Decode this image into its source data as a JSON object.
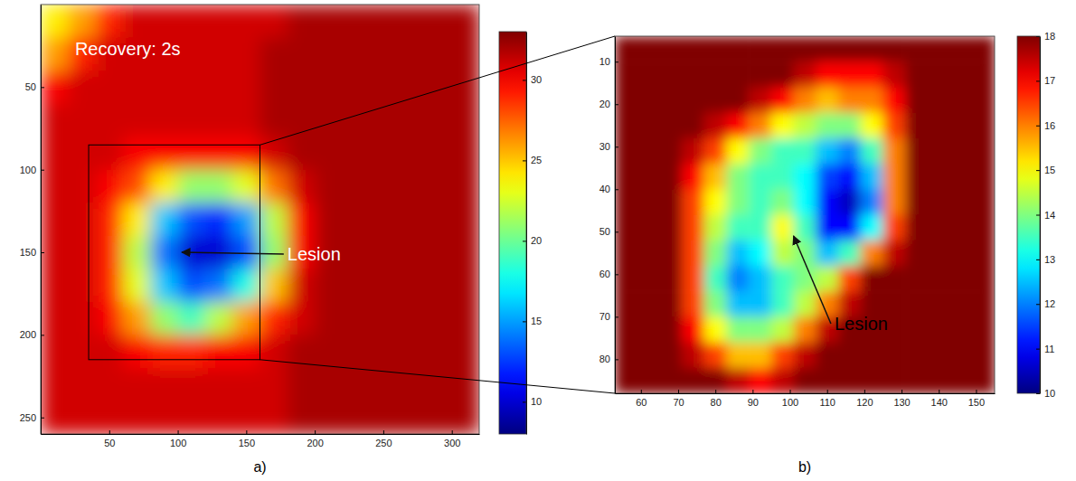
{
  "chart_data": [
    {
      "type": "heatmap",
      "title": "a)",
      "color": "jet",
      "xlim": [
        0,
        320
      ],
      "xticks": [
        50,
        100,
        150,
        200,
        250,
        300
      ],
      "ylim": [
        0,
        260
      ],
      "yticks": [
        50,
        100,
        150,
        200,
        250
      ],
      "x_edges": [
        0,
        20,
        40,
        60,
        80,
        100,
        120,
        140,
        160,
        180,
        200,
        220,
        240,
        260,
        280,
        300,
        320
      ],
      "y_edges": [
        0,
        20,
        40,
        60,
        80,
        100,
        120,
        140,
        160,
        180,
        200,
        220,
        240,
        260
      ],
      "z": [
        [
          24,
          26,
          29,
          31,
          31,
          31,
          31,
          31,
          31,
          32,
          32,
          32,
          32,
          32,
          32,
          32
        ],
        [
          26,
          29,
          31,
          31,
          31,
          31,
          31,
          31,
          32,
          32,
          32,
          32,
          32,
          32,
          32,
          32
        ],
        [
          30,
          31,
          31,
          31,
          31,
          31,
          31,
          31,
          32,
          32,
          32,
          32,
          32,
          32,
          32,
          32
        ],
        [
          31,
          31,
          31,
          31,
          31,
          31,
          31,
          31,
          32,
          32,
          32,
          32,
          32,
          32,
          32,
          32
        ],
        [
          31,
          31,
          31,
          30,
          30,
          30,
          30,
          30,
          31,
          32,
          32,
          32,
          32,
          32,
          32,
          32
        ],
        [
          31,
          31,
          30,
          28,
          24,
          21,
          21,
          23,
          27,
          31,
          32,
          32,
          32,
          32,
          32,
          32
        ],
        [
          31,
          31,
          29,
          24,
          16,
          13,
          12,
          15,
          22,
          30,
          32,
          32,
          32,
          32,
          32,
          32
        ],
        [
          31,
          31,
          29,
          22,
          14,
          10,
          10,
          13,
          21,
          30,
          32,
          32,
          32,
          32,
          32,
          32
        ],
        [
          31,
          31,
          29,
          23,
          16,
          13,
          14,
          18,
          25,
          31,
          32,
          32,
          32,
          32,
          32,
          32
        ],
        [
          31,
          31,
          30,
          26,
          21,
          19,
          22,
          26,
          29,
          31,
          32,
          32,
          32,
          32,
          32,
          32
        ],
        [
          31,
          31,
          31,
          30,
          29,
          29,
          30,
          30,
          31,
          32,
          32,
          32,
          32,
          32,
          32,
          32
        ],
        [
          31,
          31,
          31,
          31,
          31,
          31,
          31,
          31,
          31,
          32,
          32,
          32,
          32,
          32,
          32,
          32
        ],
        [
          31,
          31,
          31,
          31,
          31,
          31,
          31,
          31,
          31,
          32,
          32,
          32,
          32,
          32,
          32,
          32
        ]
      ],
      "colorbar": {
        "range": [
          8,
          33
        ],
        "ticks": [
          10,
          15,
          20,
          25,
          30
        ]
      },
      "zoom_box": {
        "x": [
          35,
          160
        ],
        "y": [
          85,
          215
        ]
      },
      "annotations": [
        {
          "text": "Recovery: 2s",
          "x": 25,
          "y": 28,
          "color": "white"
        },
        {
          "text": "Lesion",
          "x": 180,
          "y": 152,
          "arrow_to": [
            103,
            150
          ],
          "color": "white"
        }
      ]
    },
    {
      "type": "heatmap",
      "title": "b)",
      "color": "jet",
      "xlim": [
        53,
        155
      ],
      "xticks": [
        60,
        70,
        80,
        90,
        100,
        110,
        120,
        130,
        140,
        150
      ],
      "ylim": [
        4,
        88
      ],
      "yticks": [
        10,
        20,
        30,
        40,
        50,
        60,
        70,
        80
      ],
      "x_edges": [
        53,
        59,
        65,
        71,
        77,
        83,
        89,
        95,
        101,
        107,
        113,
        119,
        125,
        131,
        137,
        143,
        149,
        155
      ],
      "y_edges": [
        4,
        10,
        16,
        22,
        28,
        34,
        40,
        46,
        52,
        58,
        64,
        70,
        76,
        82,
        88
      ],
      "z": [
        [
          18,
          18,
          18,
          18,
          18,
          18,
          18,
          18,
          18,
          18,
          18,
          18,
          18,
          18,
          18,
          18,
          18
        ],
        [
          18,
          18,
          18,
          18,
          18,
          18,
          18,
          18,
          17.5,
          17,
          17,
          17,
          17.5,
          18,
          18,
          18,
          18
        ],
        [
          18,
          18,
          18,
          18,
          18,
          18,
          17.5,
          17,
          16,
          15.5,
          16,
          16,
          17,
          18,
          18,
          18,
          18
        ],
        [
          18,
          18,
          18,
          18,
          17.5,
          17,
          16,
          15,
          14.5,
          14,
          14,
          15,
          16.5,
          18,
          18,
          18,
          18
        ],
        [
          18,
          18,
          18,
          17.5,
          16.5,
          15,
          14,
          13.5,
          13.5,
          12.5,
          12,
          13.5,
          16,
          18,
          18,
          18,
          18
        ],
        [
          18,
          18,
          18,
          17,
          15.5,
          14,
          13.5,
          13.5,
          13,
          11.5,
          11,
          12.5,
          16,
          18,
          18,
          18,
          18
        ],
        [
          18,
          18,
          18,
          16.5,
          15,
          14,
          13.5,
          14,
          13,
          11,
          10.5,
          12,
          16,
          18,
          18,
          18,
          18
        ],
        [
          18,
          18,
          18,
          16.5,
          14.5,
          13.5,
          13.5,
          15,
          13.5,
          11,
          11,
          13,
          16.5,
          18,
          18,
          18,
          18
        ],
        [
          18,
          18,
          18,
          16.5,
          14,
          12.5,
          13,
          14.5,
          14,
          12.5,
          13.5,
          16,
          17.5,
          18,
          18,
          18,
          18
        ],
        [
          18,
          18,
          18,
          16.5,
          13.5,
          12,
          12.5,
          13.5,
          14,
          14.5,
          16.5,
          18,
          18,
          18,
          18,
          18,
          18
        ],
        [
          18,
          18,
          18,
          16.5,
          14,
          12.5,
          12.5,
          13.5,
          14.5,
          16,
          17.5,
          18,
          18,
          18,
          18,
          18,
          18
        ],
        [
          18,
          18,
          18,
          17,
          15,
          14,
          14,
          14.5,
          16,
          17.5,
          18,
          18,
          18,
          18,
          18,
          18,
          18
        ],
        [
          18,
          18,
          18,
          17.5,
          16.5,
          15.5,
          15.5,
          16.5,
          17.5,
          18,
          18,
          18,
          18,
          18,
          18,
          18,
          18
        ],
        [
          18,
          18,
          18,
          18,
          18,
          17.5,
          17,
          17.5,
          18,
          18,
          18,
          18,
          18,
          18,
          18,
          18,
          18
        ]
      ],
      "colorbar": {
        "range": [
          10,
          18
        ],
        "ticks": [
          10,
          11,
          12,
          13,
          14,
          15,
          16,
          17,
          18
        ]
      },
      "annotations": [
        {
          "text": "Lesion",
          "x": 112,
          "y": 72,
          "arrow_to": [
            101,
            51
          ],
          "color": "black"
        }
      ]
    }
  ]
}
